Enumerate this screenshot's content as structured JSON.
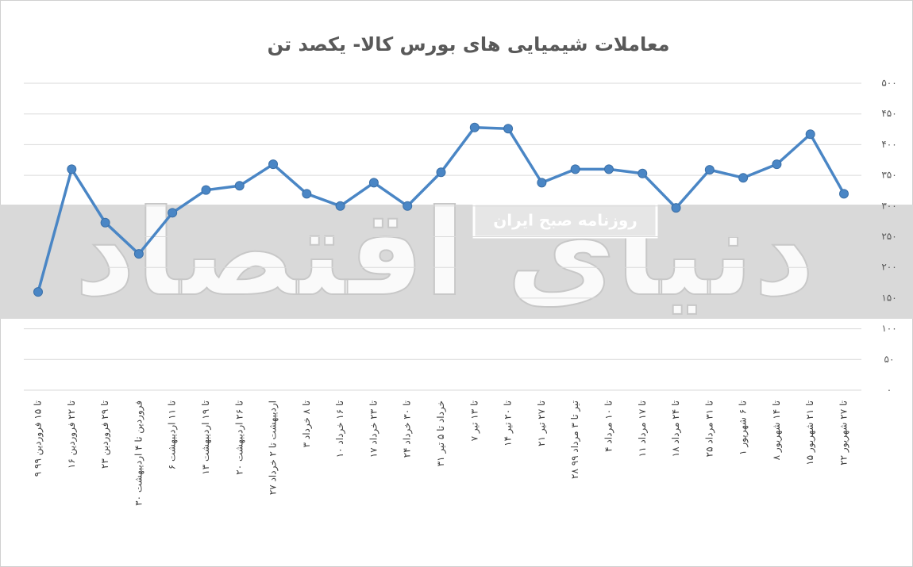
{
  "chart_data": {
    "type": "line",
    "title": "معاملات شیمیایی های بورس کالا- یکصد تن",
    "watermark": [
      "دنیای اقتصاد",
      "روزنامه صبح ایران"
    ],
    "categories": [
      "۹ تا ۱۵ فروردین ۹۹",
      "۱۶ تا ۲۲ فروردین",
      "۲۳ تا ۲۹ فروردین",
      "۳۰ فروردین تا ۴ اردیبهشت",
      "۶ تا ۱۱ اردیبهشت",
      "۱۳ تا ۱۹ اردیبهشت",
      "۲۰ تا ۲۶ اردیبهشت",
      "۲۷ اردیبهشت تا ۲ خرداد",
      "۳ تا ۸ خرداد",
      "۱۰ تا ۱۶ خرداد",
      "۱۷ تا ۲۳ خرداد",
      "۲۴ تا ۳۰ خرداد",
      "۳۱ خرداد تا ۵ تیر",
      "۷ تا ۱۳ تیر",
      "۱۴ تا ۲۰ تیر",
      "۲۱ تا ۲۷ تیر",
      "۲۸ تیر تا ۳ مرداد ۹۹",
      "۴ تا ۱۰ مرداد",
      "۱۱ تا ۱۷ مرداد",
      "۱۸ تا ۲۴ مرداد",
      "۲۵ تا ۳۱ مرداد",
      "۱ تا ۶ شهریور",
      "۸ تا ۱۴ شهریور",
      "۱۵ تا ۲۱ شهریور",
      "۲۲ تا ۲۷ شهریور"
    ],
    "values": [
      160,
      360,
      273,
      222,
      289,
      326,
      333,
      368,
      320,
      300,
      338,
      300,
      355,
      428,
      426,
      338,
      360,
      360,
      353,
      297,
      359,
      346,
      368,
      417,
      320
    ],
    "color": "#4a86c5",
    "ylim": [
      0,
      500
    ],
    "yticks": [
      {
        "value": 0,
        "label": "۰"
      },
      {
        "value": 50,
        "label": "۵۰"
      },
      {
        "value": 100,
        "label": "۱۰۰"
      },
      {
        "value": 150,
        "label": "۱۵۰"
      },
      {
        "value": 200,
        "label": "۲۰۰"
      },
      {
        "value": 250,
        "label": "۲۵۰"
      },
      {
        "value": 300,
        "label": "۳۰۰"
      },
      {
        "value": 350,
        "label": "۳۵۰"
      },
      {
        "value": 400,
        "label": "۴۰۰"
      },
      {
        "value": 450,
        "label": "۴۵۰"
      },
      {
        "value": 500,
        "label": "۵۰۰"
      }
    ],
    "grid": true
  }
}
